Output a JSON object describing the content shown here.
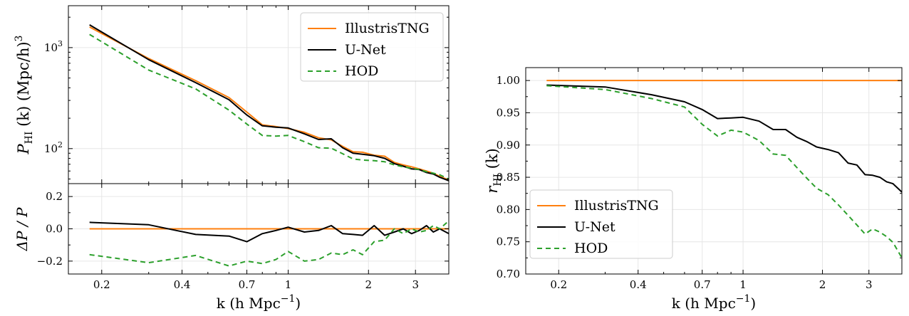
{
  "colors": {
    "tng": "#ff7f0e",
    "unet": "#000000",
    "hod": "#2ca02c",
    "grid": "#e6e6e6"
  },
  "xlabel_text": "k (h Mpc",
  "xlabel_sup": "−1",
  "xlabel_close": ")",
  "xticks": [
    {
      "v": 0.2,
      "label": "0.2"
    },
    {
      "v": 0.4,
      "label": "0.4"
    },
    {
      "v": 0.7,
      "label": "0.7"
    },
    {
      "v": 1,
      "label": "1"
    },
    {
      "v": 2,
      "label": "2"
    },
    {
      "v": 3,
      "label": "3"
    }
  ],
  "legend": {
    "tng": "IllustrisTNG",
    "unet": "U-Net",
    "hod": "HOD"
  },
  "left_top": {
    "ylabel_main": "P",
    "ylabel_sub": "HI",
    "ylabel_rest": " (k) (Mpc/h)",
    "ylabel_sup": "3",
    "yticks": [
      {
        "v": 100,
        "base": "10",
        "exp": "2"
      },
      {
        "v": 1000,
        "base": "10",
        "exp": "3"
      }
    ]
  },
  "left_bottom": {
    "ylabel": "ΔP / P",
    "yticks": [
      {
        "v": 0.2,
        "label": "0.2"
      },
      {
        "v": 0.0,
        "label": "0.0"
      },
      {
        "v": -0.2,
        "label": "−0.2"
      }
    ]
  },
  "right": {
    "ylabel_main": "r",
    "ylabel_sub": "HI",
    "ylabel_rest": " (k)",
    "yticks": [
      {
        "v": 1.0,
        "label": "1.00"
      },
      {
        "v": 0.95,
        "label": "0.95"
      },
      {
        "v": 0.9,
        "label": "0.90"
      },
      {
        "v": 0.85,
        "label": "0.85"
      },
      {
        "v": 0.8,
        "label": "0.80"
      },
      {
        "v": 0.75,
        "label": "0.75"
      },
      {
        "v": 0.7,
        "label": "0.70"
      }
    ]
  },
  "chart_data": [
    {
      "type": "line",
      "xlabel": "k (h Mpc−1)",
      "ylabel": "PHI (k) (Mpc/h)3",
      "xscale": "log",
      "yscale": "log",
      "xlim": [
        0.15,
        4.0
      ],
      "ylim": [
        45,
        2600
      ],
      "legend_position": "top-right",
      "series": [
        {
          "name": "IllustrisTNG",
          "color": "#ff7f0e",
          "x": [
            0.18,
            0.3,
            0.45,
            0.6,
            0.7,
            0.8,
            0.9,
            1.0,
            1.15,
            1.3,
            1.45,
            1.6,
            1.75,
            1.9,
            2.1,
            2.3,
            2.5,
            2.7,
            2.9,
            3.1,
            3.3,
            3.5,
            3.7,
            4.0
          ],
          "y": [
            1600,
            780,
            470,
            320,
            230,
            172,
            165,
            158,
            145,
            128,
            122,
            105,
            93,
            92,
            86,
            84,
            73,
            69,
            66,
            63,
            60,
            57,
            53,
            49
          ]
        },
        {
          "name": "U-Net",
          "color": "#000000",
          "x": [
            0.18,
            0.3,
            0.45,
            0.6,
            0.7,
            0.8,
            0.9,
            1.0,
            1.15,
            1.3,
            1.45,
            1.6,
            1.75,
            1.9,
            2.1,
            2.3,
            2.5,
            2.7,
            2.9,
            3.1,
            3.3,
            3.5,
            3.7,
            4.0
          ],
          "y": [
            1680,
            760,
            450,
            305,
            215,
            168,
            163,
            160,
            140,
            123,
            125,
            102,
            90,
            88,
            85,
            80,
            71,
            67,
            63,
            62,
            58,
            56,
            52,
            48
          ]
        },
        {
          "name": "HOD",
          "color": "#2ca02c",
          "dashed": true,
          "x": [
            0.18,
            0.3,
            0.45,
            0.6,
            0.7,
            0.8,
            0.9,
            1.0,
            1.15,
            1.3,
            1.45,
            1.6,
            1.75,
            1.9,
            2.1,
            2.3,
            2.5,
            2.7,
            2.9,
            3.1,
            3.3,
            3.5,
            3.7,
            4.0
          ],
          "y": [
            1350,
            600,
            390,
            240,
            175,
            135,
            133,
            135,
            117,
            102,
            101,
            89,
            79,
            77,
            76,
            74,
            69,
            66,
            64,
            62,
            59,
            57,
            55,
            50
          ]
        }
      ]
    },
    {
      "type": "line",
      "xlabel": "k (h Mpc−1)",
      "ylabel": "ΔP / P",
      "xscale": "log",
      "xlim": [
        0.15,
        4.0
      ],
      "ylim": [
        -0.28,
        0.28
      ],
      "series": [
        {
          "name": "IllustrisTNG",
          "color": "#ff7f0e",
          "x": [
            0.18,
            4.0
          ],
          "y": [
            0,
            0
          ]
        },
        {
          "name": "U-Net",
          "color": "#000000",
          "x": [
            0.18,
            0.3,
            0.45,
            0.6,
            0.7,
            0.8,
            0.9,
            1.0,
            1.15,
            1.3,
            1.45,
            1.6,
            1.75,
            1.9,
            2.1,
            2.3,
            2.5,
            2.7,
            2.9,
            3.1,
            3.3,
            3.5,
            3.7,
            4.0
          ],
          "y": [
            0.04,
            0.025,
            -0.035,
            -0.045,
            -0.08,
            -0.03,
            -0.01,
            0.01,
            -0.02,
            -0.01,
            0.02,
            -0.03,
            -0.035,
            -0.04,
            0.02,
            -0.04,
            -0.02,
            0.0,
            -0.03,
            -0.01,
            0.02,
            -0.02,
            0.0,
            -0.03
          ]
        },
        {
          "name": "HOD",
          "color": "#2ca02c",
          "dashed": true,
          "x": [
            0.18,
            0.3,
            0.45,
            0.6,
            0.7,
            0.8,
            0.9,
            1.0,
            1.15,
            1.3,
            1.45,
            1.6,
            1.75,
            1.9,
            2.1,
            2.3,
            2.5,
            2.7,
            2.9,
            3.1,
            3.3,
            3.5,
            3.7,
            4.0
          ],
          "y": [
            -0.16,
            -0.21,
            -0.165,
            -0.23,
            -0.2,
            -0.215,
            -0.19,
            -0.14,
            -0.2,
            -0.19,
            -0.15,
            -0.16,
            -0.13,
            -0.16,
            -0.08,
            -0.07,
            0.0,
            -0.03,
            0.0,
            -0.02,
            -0.01,
            0.02,
            0.0,
            0.05
          ]
        }
      ]
    },
    {
      "type": "line",
      "xlabel": "k (h Mpc−1)",
      "ylabel": "rHI (k)",
      "xscale": "log",
      "xlim": [
        0.15,
        4.0
      ],
      "ylim": [
        0.7,
        1.02
      ],
      "legend_position": "bottom-left",
      "series": [
        {
          "name": "IllustrisTNG",
          "color": "#ff7f0e",
          "x": [
            0.18,
            4.0
          ],
          "y": [
            1.0,
            1.0
          ]
        },
        {
          "name": "U-Net",
          "color": "#000000",
          "x": [
            0.18,
            0.3,
            0.45,
            0.6,
            0.7,
            0.8,
            0.9,
            1.0,
            1.15,
            1.3,
            1.45,
            1.6,
            1.75,
            1.9,
            2.1,
            2.3,
            2.5,
            2.7,
            2.9,
            3.1,
            3.3,
            3.5,
            3.7,
            4.0
          ],
          "y": [
            0.993,
            0.99,
            0.978,
            0.967,
            0.955,
            0.941,
            0.942,
            0.943,
            0.937,
            0.924,
            0.924,
            0.912,
            0.905,
            0.897,
            0.893,
            0.888,
            0.872,
            0.869,
            0.854,
            0.853,
            0.85,
            0.843,
            0.84,
            0.827
          ]
        },
        {
          "name": "HOD",
          "color": "#2ca02c",
          "dashed": true,
          "x": [
            0.18,
            0.3,
            0.45,
            0.6,
            0.7,
            0.8,
            0.9,
            1.0,
            1.15,
            1.3,
            1.45,
            1.6,
            1.75,
            1.9,
            2.1,
            2.3,
            2.5,
            2.7,
            2.9,
            3.1,
            3.3,
            3.5,
            3.7,
            4.0
          ],
          "y": [
            0.992,
            0.986,
            0.972,
            0.959,
            0.932,
            0.914,
            0.923,
            0.92,
            0.907,
            0.886,
            0.884,
            0.865,
            0.848,
            0.833,
            0.823,
            0.807,
            0.791,
            0.776,
            0.762,
            0.77,
            0.765,
            0.758,
            0.749,
            0.725
          ]
        }
      ]
    }
  ]
}
